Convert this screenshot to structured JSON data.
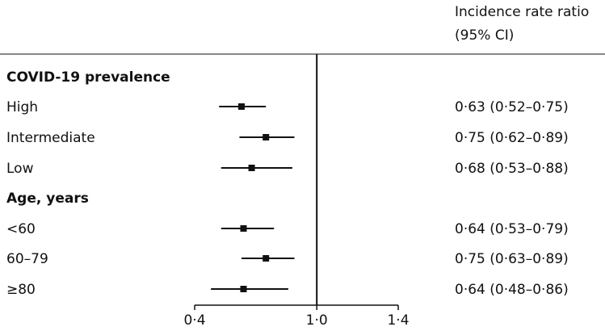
{
  "header": {
    "column_title_line1": "Incidence rate ratio",
    "column_title_line2": "(95% CI)"
  },
  "chart_data": {
    "type": "forest",
    "xlim": [
      0.4,
      1.4
    ],
    "xticks": [
      "0·4",
      "1·0",
      "1·4"
    ],
    "xtick_values": [
      0.4,
      1.0,
      1.4
    ],
    "reference_line": 1.0,
    "groups": [
      {
        "title": "COVID-19 prevalence",
        "rows": [
          {
            "label": "High",
            "estimate": 0.63,
            "lower": 0.52,
            "upper": 0.75,
            "ci_text": "0·63 (0·52–0·75)"
          },
          {
            "label": "Intermediate",
            "estimate": 0.75,
            "lower": 0.62,
            "upper": 0.89,
            "ci_text": "0·75 (0·62–0·89)"
          },
          {
            "label": "Low",
            "estimate": 0.68,
            "lower": 0.53,
            "upper": 0.88,
            "ci_text": "0·68 (0·53–0·88)"
          }
        ]
      },
      {
        "title": "Age, years",
        "rows": [
          {
            "label": "<60",
            "estimate": 0.64,
            "lower": 0.53,
            "upper": 0.79,
            "ci_text": "0·64 (0·53–0·79)"
          },
          {
            "label": "60–79",
            "estimate": 0.75,
            "lower": 0.63,
            "upper": 0.89,
            "ci_text": "0·75 (0·63–0·89)"
          },
          {
            "label": "≥80",
            "estimate": 0.64,
            "lower": 0.48,
            "upper": 0.86,
            "ci_text": "0·64 (0·48–0·86)"
          }
        ]
      }
    ]
  }
}
